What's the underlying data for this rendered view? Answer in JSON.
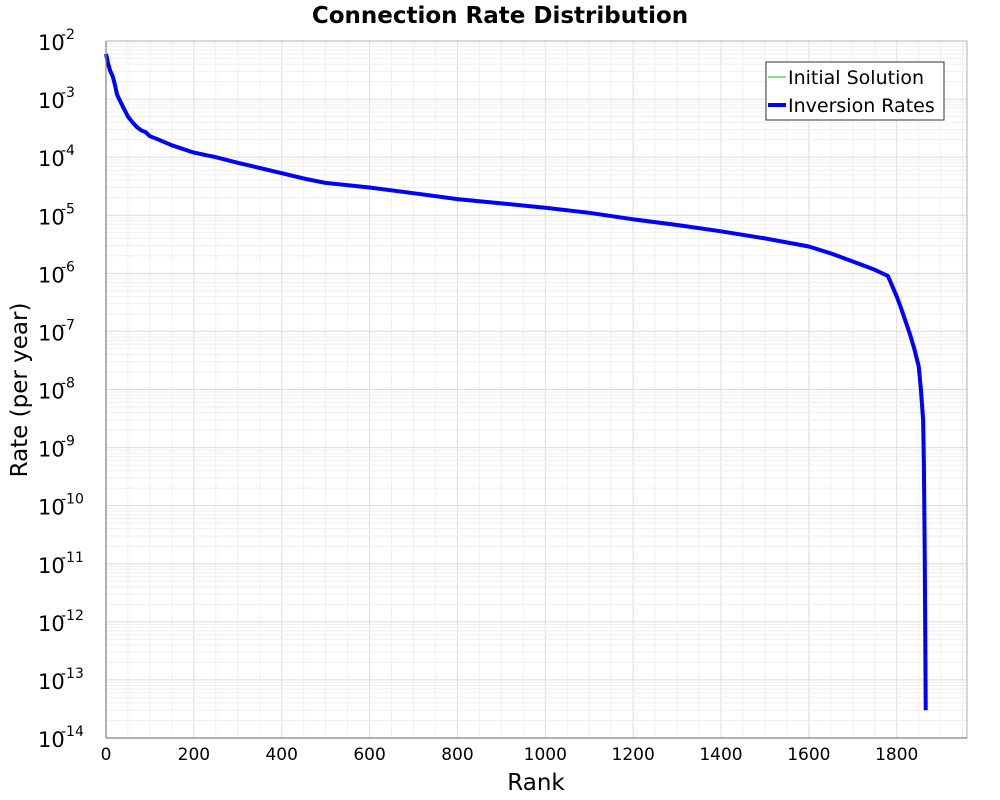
{
  "chart_data": {
    "type": "line",
    "title": "Connection Rate Distribution",
    "xlabel": "Rank",
    "ylabel": "Rate (per year)",
    "xlim": [
      0,
      1960
    ],
    "ylim": [
      1e-14,
      0.01
    ],
    "yscale": "log",
    "grid": true,
    "legend_position": "top-right",
    "x_ticks": [
      "0",
      "200",
      "400",
      "600",
      "800",
      "1000",
      "1200",
      "1400",
      "1600",
      "1800"
    ],
    "y_ticks": [
      {
        "base": "10",
        "exp": "-2"
      },
      {
        "base": "10",
        "exp": "-3"
      },
      {
        "base": "10",
        "exp": "-4"
      },
      {
        "base": "10",
        "exp": "-5"
      },
      {
        "base": "10",
        "exp": "-6"
      },
      {
        "base": "10",
        "exp": "-7"
      },
      {
        "base": "10",
        "exp": "-8"
      },
      {
        "base": "10",
        "exp": "-9"
      },
      {
        "base": "10",
        "exp": "-10"
      },
      {
        "base": "10",
        "exp": "-11"
      },
      {
        "base": "10",
        "exp": "-12"
      },
      {
        "base": "10",
        "exp": "-13"
      },
      {
        "base": "10",
        "exp": "-14"
      }
    ],
    "series": [
      {
        "name": "Initial Solution",
        "color": "#00cc00",
        "x": [],
        "y": []
      },
      {
        "name": "Inversion Rates",
        "color": "#0000ff",
        "x": [
          0,
          5,
          10,
          15,
          20,
          25,
          30,
          40,
          50,
          60,
          70,
          80,
          90,
          100,
          120,
          150,
          200,
          250,
          300,
          350,
          400,
          450,
          500,
          600,
          700,
          800,
          900,
          1000,
          1100,
          1200,
          1300,
          1400,
          1500,
          1600,
          1650,
          1700,
          1750,
          1780,
          1790,
          1800,
          1810,
          1820,
          1830,
          1840,
          1850,
          1855,
          1860,
          1862,
          1864,
          1866,
          1866
        ],
        "y": [
          0.006,
          0.004,
          0.003,
          0.0025,
          0.0018,
          0.0012,
          0.001,
          0.0007,
          0.0005,
          0.0004,
          0.00033,
          0.00029,
          0.00027,
          0.00023,
          0.0002,
          0.00016,
          0.00012,
          0.0001,
          8e-05,
          6.5e-05,
          5.3e-05,
          4.3e-05,
          3.6e-05,
          3e-05,
          2.4e-05,
          1.9e-05,
          1.6e-05,
          1.35e-05,
          1.1e-05,
          8.5e-06,
          6.8e-06,
          5.3e-06,
          4e-06,
          2.9e-06,
          2.2e-06,
          1.6e-06,
          1.15e-06,
          9e-07,
          6e-07,
          4e-07,
          2.5e-07,
          1.5e-07,
          9e-08,
          5e-08,
          2.5e-08,
          1e-08,
          3e-09,
          5e-10,
          1e-11,
          3e-14,
          3e-14
        ]
      }
    ]
  }
}
